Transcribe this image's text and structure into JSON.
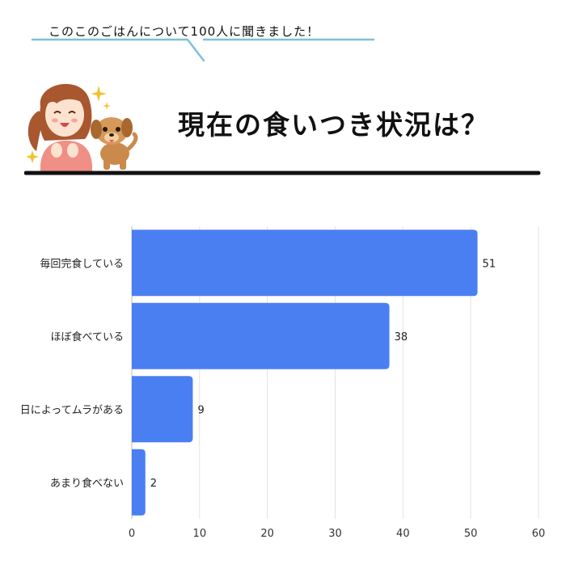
{
  "header": {
    "subtitle": "このこのごはんについて100人に聞きました！",
    "title": "現在の食いつき状況は？"
  },
  "colors": {
    "bar": "#4a7ff2",
    "accent_line": "#7fbfd9",
    "rule": "#111111",
    "grid": "#e2e2e2"
  },
  "icons": [
    "woman-illustration",
    "dog-illustration",
    "sparkle-icon"
  ],
  "chart_data": {
    "type": "bar",
    "orientation": "horizontal",
    "categories": [
      "毎回完食している",
      "ほぼ食べている",
      "日によってムラがある",
      "あまり食べない"
    ],
    "values": [
      51,
      38,
      9,
      2
    ],
    "xlim": [
      0,
      60
    ],
    "xticks": [
      0,
      10,
      20,
      30,
      40,
      50,
      60
    ],
    "grid": true,
    "data_labels": true
  }
}
